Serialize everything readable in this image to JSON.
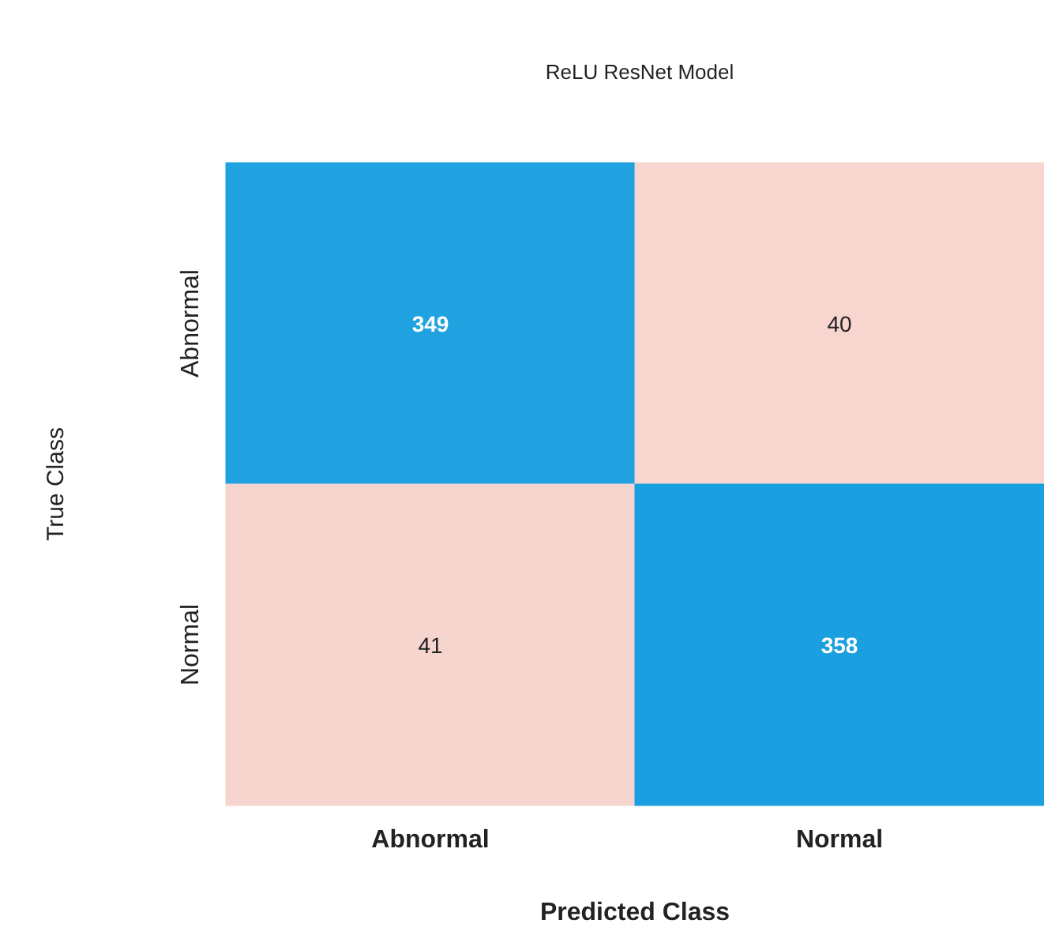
{
  "chart_data": {
    "type": "heatmap",
    "title": "ReLU ResNet Model",
    "xlabel": "Predicted Class",
    "ylabel": "True Class",
    "categories": [
      "Abnormal",
      "Normal"
    ],
    "y_categories": [
      "Abnormal",
      "Normal"
    ],
    "cells": [
      [
        349,
        40
      ],
      [
        41,
        358
      ]
    ],
    "colors": [
      "#f8d5cf",
      "#1a9fe0"
    ],
    "data_labels": true
  }
}
